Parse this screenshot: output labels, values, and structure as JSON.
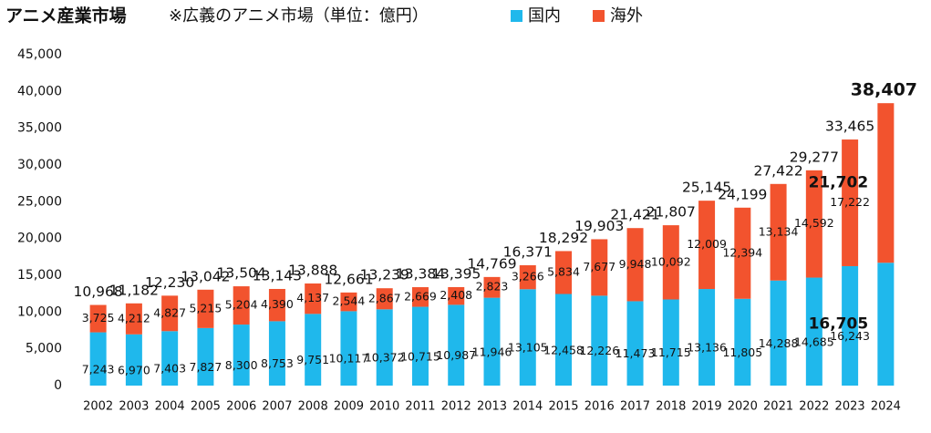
{
  "chart_data": {
    "type": "stacked_bar",
    "title": "アニメ産業市場",
    "subtitle": "※広義のアニメ市場（単位：億円）",
    "categories": [
      "2002",
      "2003",
      "2004",
      "2005",
      "2006",
      "2007",
      "2008",
      "2009",
      "2010",
      "2011",
      "2012",
      "2013",
      "2014",
      "2015",
      "2016",
      "2017",
      "2018",
      "2019",
      "2020",
      "2021",
      "2022",
      "2023",
      "2024"
    ],
    "series": [
      {
        "name": "国内",
        "color": "#1fb8ec",
        "values": [
          7243,
          6970,
          7403,
          7827,
          8300,
          8753,
          9751,
          10117,
          10372,
          10715,
          10987,
          11946,
          13105,
          12458,
          12226,
          11473,
          11715,
          13136,
          11805,
          14288,
          14685,
          16243,
          16705
        ],
        "value_labels": [
          "7,243",
          "6,970",
          "7,403",
          "7,827",
          "8,300",
          "8,753",
          "9,751",
          "10,117",
          "10,372",
          "10,715",
          "10,987",
          "11,946",
          "13,105",
          "12,458",
          "12,226",
          "11,473",
          "11,715",
          "13,136",
          "11,805",
          "14,288",
          "14,685",
          "16,243",
          "16,705"
        ]
      },
      {
        "name": "海外",
        "color": "#f2532e",
        "values": [
          3725,
          4212,
          4827,
          5215,
          5204,
          4390,
          4137,
          2544,
          2867,
          2669,
          2408,
          2823,
          3266,
          5834,
          7677,
          9948,
          10092,
          12009,
          12394,
          13134,
          14592,
          17222,
          21702
        ],
        "value_labels": [
          "3,725",
          "4,212",
          "4,827",
          "5,215",
          "5,204",
          "4,390",
          "4,137",
          "2,544",
          "2,867",
          "2,669",
          "2,408",
          "2,823",
          "3,266",
          "5,834",
          "7,677",
          "9,948",
          "10,092",
          "12,009",
          "12,394",
          "13,134",
          "14,592",
          "17,222",
          "21,702"
        ]
      }
    ],
    "totals": [
      10968,
      11182,
      12230,
      13042,
      13504,
      13143,
      13888,
      12661,
      13239,
      13384,
      13395,
      14769,
      16371,
      18292,
      19903,
      21421,
      21807,
      25145,
      24199,
      27422,
      29277,
      33465,
      38407
    ],
    "total_labels": [
      "10,968",
      "11,182",
      "12,230",
      "13,042",
      "13,504",
      "13,143",
      "13,888",
      "12,661",
      "13,239",
      "13,384",
      "13,395",
      "14,769",
      "16,371",
      "18,292",
      "19,903",
      "21,421",
      "21,807",
      "25,145",
      "24,199",
      "27,422",
      "29,277",
      "33,465",
      "38,407"
    ],
    "ylim": [
      0,
      45000
    ],
    "yticks": [
      0,
      {
        "value": 5000,
        "label": "5,000"
      },
      {
        "value": 10000,
        "label": "10,000"
      },
      {
        "value": 15000,
        "label": "15,000"
      },
      {
        "value": 20000,
        "label": "20,000"
      },
      {
        "value": 25000,
        "label": "25,000"
      },
      {
        "value": 30000,
        "label": "30,000"
      },
      {
        "value": 35000,
        "label": "35,000"
      },
      {
        "value": 40000,
        "label": "40,000"
      },
      {
        "value": 45000,
        "label": "45,000"
      }
    ],
    "grid": false
  }
}
